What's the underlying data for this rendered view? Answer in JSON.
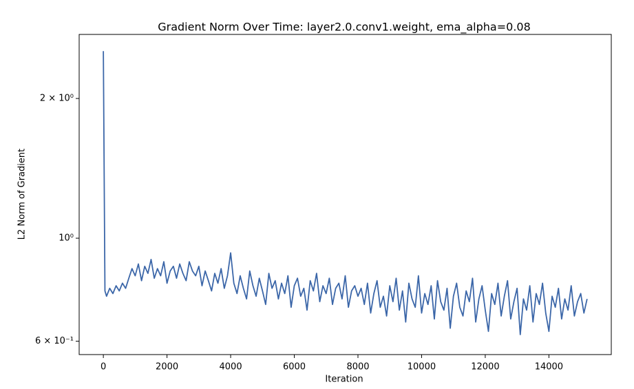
{
  "chart_data": {
    "type": "line",
    "title": "Gradient Norm Over Time: layer2.0.conv1.weight, ema_alpha=0.08",
    "x_label": "Iteration",
    "y_label": "L2 Norm of Gradient",
    "y_scale": "log",
    "xlim": [
      -760,
      15960
    ],
    "ylim": [
      0.5615,
      2.748
    ],
    "xticks": [
      0,
      2000,
      4000,
      6000,
      8000,
      10000,
      12000,
      14000
    ],
    "yticks": [
      {
        "value": 0.6,
        "label": "6 × 10⁻¹"
      },
      {
        "value": 1,
        "label": "10⁰"
      },
      {
        "value": 2,
        "label": "2 × 10⁰"
      }
    ],
    "x": [
      0,
      50,
      100,
      200,
      300,
      400,
      500,
      600,
      700,
      800,
      900,
      1000,
      1100,
      1200,
      1300,
      1400,
      1500,
      1600,
      1700,
      1800,
      1900,
      2000,
      2100,
      2200,
      2300,
      2400,
      2500,
      2600,
      2700,
      2800,
      2900,
      3000,
      3100,
      3200,
      3300,
      3400,
      3500,
      3600,
      3700,
      3800,
      3900,
      4000,
      4100,
      4200,
      4300,
      4400,
      4500,
      4600,
      4700,
      4800,
      4900,
      5000,
      5100,
      5200,
      5300,
      5400,
      5500,
      5600,
      5700,
      5800,
      5900,
      6000,
      6100,
      6200,
      6300,
      6400,
      6500,
      6600,
      6700,
      6800,
      6900,
      7000,
      7100,
      7200,
      7300,
      7400,
      7500,
      7600,
      7700,
      7800,
      7900,
      8000,
      8100,
      8200,
      8300,
      8400,
      8500,
      8600,
      8700,
      8800,
      8900,
      9000,
      9100,
      9200,
      9300,
      9400,
      9500,
      9600,
      9700,
      9800,
      9900,
      10000,
      10100,
      10200,
      10300,
      10400,
      10500,
      10600,
      10700,
      10800,
      10900,
      11000,
      11100,
      11200,
      11300,
      11400,
      11500,
      11600,
      11700,
      11800,
      11900,
      12000,
      12100,
      12200,
      12300,
      12400,
      12500,
      12600,
      12700,
      12800,
      12900,
      13000,
      13100,
      13200,
      13300,
      13400,
      13500,
      13600,
      13700,
      13800,
      13900,
      14000,
      14100,
      14200,
      14300,
      14400,
      14500,
      14600,
      14700,
      14800,
      14900,
      15000,
      15100,
      15200
    ],
    "series": [
      {
        "name": "layer2.0.conv1.weight",
        "color": "#3b66a8",
        "values": [
          2.53,
          0.77,
          0.75,
          0.78,
          0.76,
          0.79,
          0.77,
          0.8,
          0.78,
          0.82,
          0.86,
          0.83,
          0.88,
          0.81,
          0.87,
          0.84,
          0.9,
          0.82,
          0.86,
          0.83,
          0.89,
          0.8,
          0.85,
          0.87,
          0.82,
          0.88,
          0.84,
          0.81,
          0.89,
          0.85,
          0.83,
          0.87,
          0.79,
          0.85,
          0.81,
          0.77,
          0.84,
          0.8,
          0.86,
          0.78,
          0.83,
          0.93,
          0.8,
          0.76,
          0.83,
          0.78,
          0.74,
          0.85,
          0.79,
          0.75,
          0.82,
          0.77,
          0.72,
          0.84,
          0.78,
          0.81,
          0.74,
          0.8,
          0.76,
          0.83,
          0.71,
          0.79,
          0.82,
          0.75,
          0.78,
          0.7,
          0.81,
          0.77,
          0.84,
          0.73,
          0.79,
          0.76,
          0.82,
          0.72,
          0.78,
          0.8,
          0.74,
          0.83,
          0.71,
          0.77,
          0.79,
          0.75,
          0.78,
          0.72,
          0.8,
          0.69,
          0.76,
          0.81,
          0.71,
          0.75,
          0.68,
          0.79,
          0.73,
          0.82,
          0.7,
          0.77,
          0.66,
          0.8,
          0.74,
          0.71,
          0.83,
          0.69,
          0.76,
          0.72,
          0.79,
          0.67,
          0.81,
          0.73,
          0.7,
          0.78,
          0.64,
          0.75,
          0.8,
          0.71,
          0.68,
          0.77,
          0.73,
          0.82,
          0.66,
          0.74,
          0.79,
          0.7,
          0.63,
          0.76,
          0.72,
          0.8,
          0.68,
          0.75,
          0.81,
          0.67,
          0.73,
          0.78,
          0.62,
          0.74,
          0.7,
          0.79,
          0.66,
          0.76,
          0.72,
          0.8,
          0.69,
          0.63,
          0.75,
          0.71,
          0.78,
          0.67,
          0.74,
          0.7,
          0.79,
          0.68,
          0.73,
          0.76,
          0.69,
          0.74
        ]
      }
    ]
  }
}
